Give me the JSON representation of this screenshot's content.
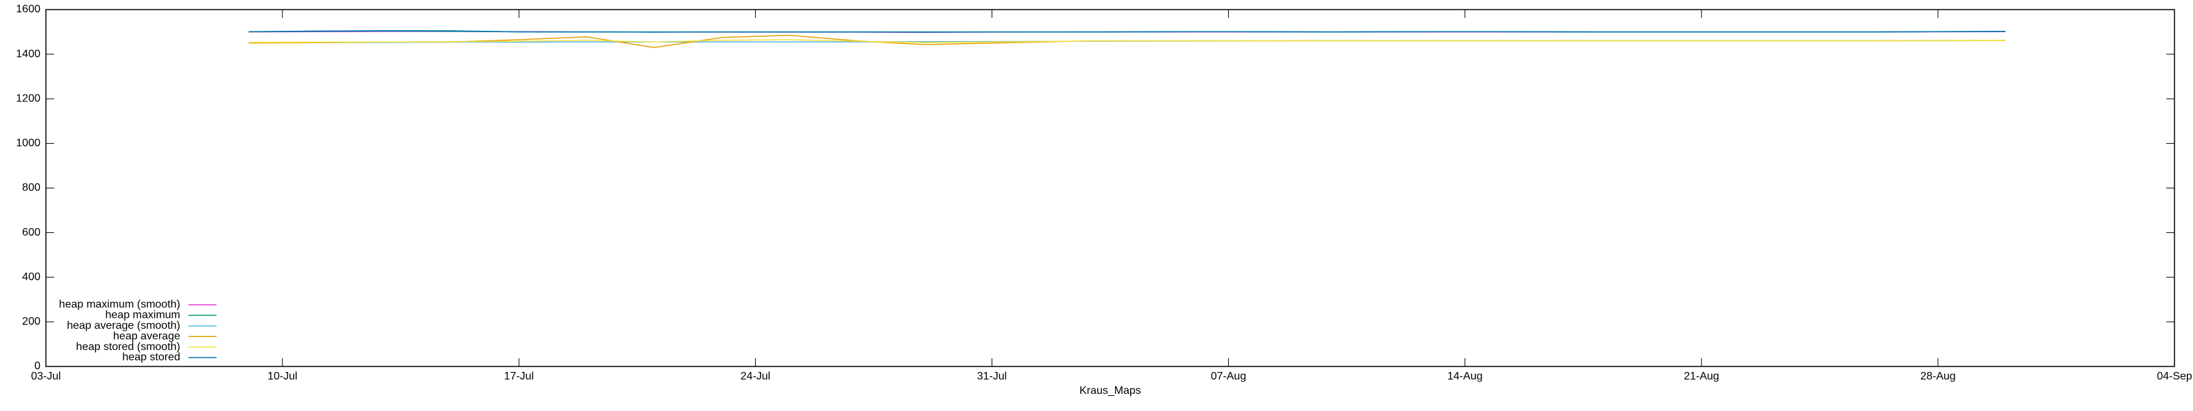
{
  "chart_data": {
    "type": "line",
    "xlabel": "Kraus_Maps",
    "x": [
      "09-Jul",
      "11-Jul",
      "13-Jul",
      "15-Jul",
      "17-Jul",
      "19-Jul",
      "21-Jul",
      "23-Jul",
      "25-Jul",
      "27-Jul",
      "29-Jul",
      "31-Jul",
      "03-Aug",
      "06-Aug",
      "10-Aug",
      "14-Aug",
      "18-Aug",
      "22-Aug",
      "26-Aug",
      "30-Aug"
    ],
    "xlim": [
      "03-Jul",
      "04-Sep"
    ],
    "xticks": [
      "03-Jul",
      "10-Jul",
      "17-Jul",
      "24-Jul",
      "31-Jul",
      "07-Aug",
      "14-Aug",
      "21-Aug",
      "28-Aug",
      "04-Sep"
    ],
    "ylim": [
      0,
      1600
    ],
    "yticks": [
      0,
      200,
      400,
      600,
      800,
      1000,
      1200,
      1400,
      1600
    ],
    "grid": false,
    "legend": "bottom left",
    "series": [
      {
        "name": "heap maximum (smooth)",
        "color": "#d63ccf",
        "values": [
          1500,
          1501,
          1502,
          1502,
          1501,
          1500,
          1499,
          1499,
          1499,
          1499,
          1498,
          1499,
          1500,
          1500,
          1500,
          1500,
          1500,
          1500,
          1500,
          1501
        ]
      },
      {
        "name": "heap maximum",
        "color": "#009e73",
        "values": [
          1500,
          1504,
          1505,
          1505,
          1500,
          1500,
          1500,
          1500,
          1500,
          1500,
          1500,
          1500,
          1500,
          1501,
          1500,
          1501,
          1500,
          1500,
          1500,
          1502
        ]
      },
      {
        "name": "heap average (smooth)",
        "color": "#56b4e9",
        "values": [
          1452,
          1452,
          1453,
          1454,
          1454,
          1455,
          1455,
          1455,
          1455,
          1455,
          1456,
          1457,
          1458,
          1459,
          1460,
          1460,
          1460,
          1460,
          1460,
          1461
        ]
      },
      {
        "name": "heap average",
        "color": "#e69f00",
        "values": [
          1450,
          1452,
          1455,
          1455,
          1465,
          1478,
          1430,
          1475,
          1485,
          1460,
          1443,
          1450,
          1460,
          1460,
          1460,
          1460,
          1460,
          1460,
          1460,
          1462
        ]
      },
      {
        "name": "heap stored (smooth)",
        "color": "#f0e442",
        "values": [
          1453,
          1454,
          1455,
          1456,
          1458,
          1462,
          1455,
          1462,
          1465,
          1458,
          1452,
          1455,
          1459,
          1460,
          1460,
          1460,
          1460,
          1460,
          1460,
          1461
        ]
      },
      {
        "name": "heap stored",
        "color": "#0072b2",
        "values": [
          1501,
          1503,
          1504,
          1503,
          1500,
          1500,
          1499,
          1500,
          1500,
          1500,
          1499,
          1500,
          1500,
          1501,
          1500,
          1501,
          1500,
          1500,
          1500,
          1502
        ]
      }
    ]
  }
}
